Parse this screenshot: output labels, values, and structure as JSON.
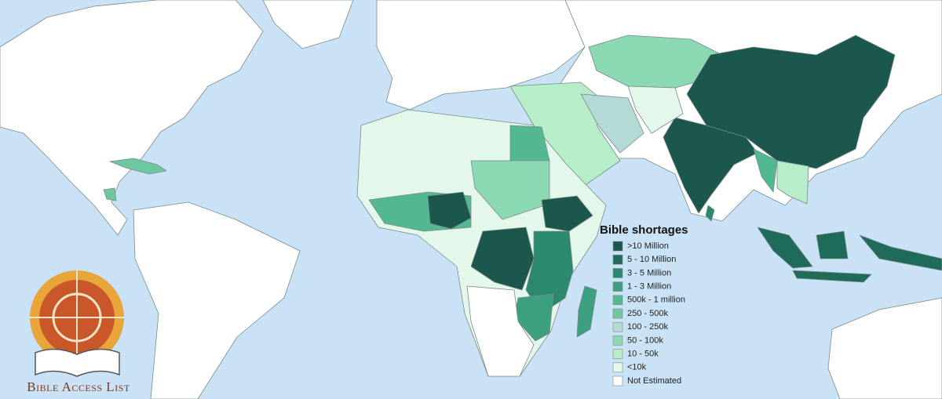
{
  "legend": {
    "title": "Bible shortages",
    "items": [
      {
        "label": ">10 Million",
        "color": "#1b574c"
      },
      {
        "label": "5 - 10 Million",
        "color": "#1f6b5a"
      },
      {
        "label": "3 - 5 Million",
        "color": "#2b8a6e"
      },
      {
        "label": "1 - 3 Million",
        "color": "#3c9f80"
      },
      {
        "label": "500k - 1 million",
        "color": "#52b892"
      },
      {
        "label": "250 - 500k",
        "color": "#6dc8a1"
      },
      {
        "label": "100 - 250k",
        "color": "#b5dad6"
      },
      {
        "label": "50 - 100k",
        "color": "#8bd9b3"
      },
      {
        "label": "10 - 50k",
        "color": "#b8edc9"
      },
      {
        "label": "<10k",
        "color": "#e3f8ea"
      },
      {
        "label": "Not Estimated",
        "color": "#ffffff"
      }
    ]
  },
  "logo": {
    "text": "Bible Access List"
  }
}
